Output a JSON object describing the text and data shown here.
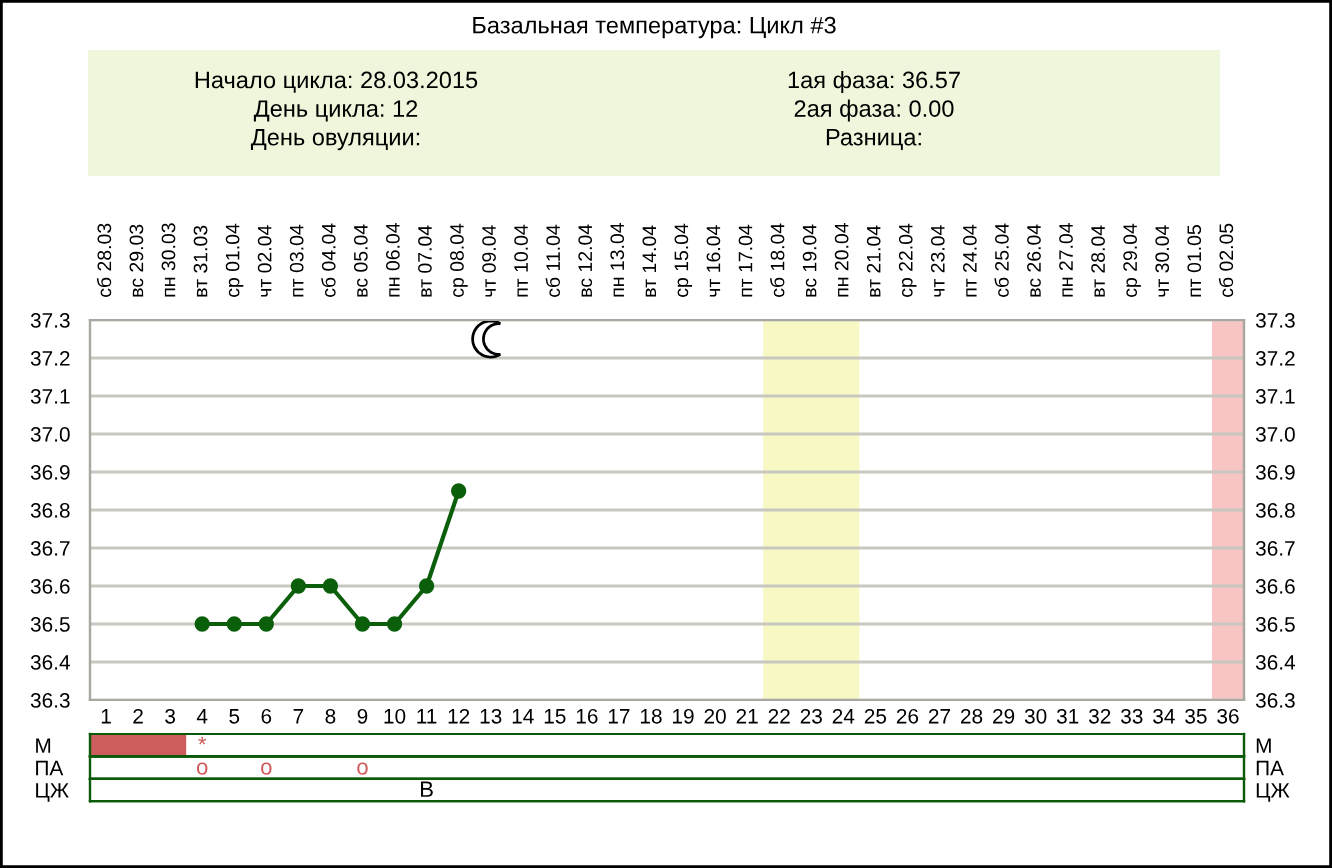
{
  "chart_data": [
    {
      "type": "other",
      "title": "Базальная температура: Цикл #3",
      "color": "#eef7dc",
      "annotations": [
        "Начало цикла: 28.03.2015",
        "1ая фаза: 36.57",
        "День цикла: 12",
        "2ая фаза: 0.00",
        "День овуляции:",
        "Разница:"
      ]
    },
    {
      "type": "line",
      "categories": [
        "1",
        "2",
        "3",
        "4",
        "5",
        "6",
        "7",
        "8",
        "9",
        "10",
        "11",
        "12",
        "13",
        "14",
        "15",
        "16",
        "17",
        "18",
        "19",
        "20",
        "21",
        "22",
        "23",
        "24",
        "25",
        "26",
        "27",
        "28",
        "29",
        "30",
        "31",
        "32",
        "33",
        "34",
        "35",
        "36"
      ],
      "values": [
        null,
        null,
        null,
        36.5,
        36.5,
        36.5,
        36.6,
        36.6,
        36.5,
        36.5,
        36.6,
        36.85,
        null,
        null,
        null,
        null,
        null,
        null,
        null,
        null,
        null,
        null,
        null,
        null,
        null,
        null,
        null,
        null,
        null,
        null,
        null,
        null,
        null,
        null,
        null,
        null
      ],
      "color": "#0b5f0b",
      "marker": "circle",
      "line_style": "solid",
      "ylim": [
        36.3,
        37.3
      ],
      "yticks": [
        36.3,
        36.4,
        36.5,
        36.6,
        36.7,
        36.8,
        36.9,
        {
          "value": 37,
          "label": "37.0"
        },
        37.1,
        37.2,
        37.3
      ],
      "y2lim": [
        36.3,
        37.3
      ],
      "y2ticks": [
        36.3,
        36.4,
        36.5,
        36.6,
        36.7,
        36.8,
        36.9,
        {
          "value": 37,
          "label": "37.0"
        },
        37.1,
        37.2,
        37.3
      ],
      "grid": true,
      "bands": [
        {
          "axis": "x",
          "from": "22",
          "to": "24",
          "color": "#f8f8c4"
        },
        {
          "axis": "x",
          "from": "36",
          "to": "36",
          "color": "#f8c4c4"
        }
      ],
      "annotations": [
        "сб 28.03",
        "вс 29.03",
        "пн 30.03",
        "вт 31.03",
        "ср 01.04",
        "чт 02.04",
        "пт 03.04",
        "сб 04.04",
        "вс 05.04",
        "пн 06.04",
        "вт 07.04",
        "ср 08.04",
        "чт 09.04",
        "пт 10.04",
        "сб 11.04",
        "вс 12.04",
        "пн 13.04",
        "вт 14.04",
        "ср 15.04",
        "чт 16.04",
        "пт 17.04",
        "сб 18.04",
        "вс 19.04",
        "пн 20.04",
        "вт 21.04",
        "ср 22.04",
        "чт 23.04",
        "пт 24.04",
        "сб 25.04",
        "вс 26.04",
        "пн 27.04",
        "вт 28.04",
        "ср 29.04",
        "чт 30.04",
        "пт 01.05",
        "сб 02.05"
      ]
    },
    {
      "type": "heatmap",
      "categories": [
        "1",
        "2",
        "3",
        "4",
        "5",
        "6",
        "7",
        "8",
        "9",
        "10",
        "11",
        "12",
        "13",
        "14",
        "15",
        "16",
        "17",
        "18",
        "19",
        "20",
        "21",
        "22",
        "23",
        "24",
        "25",
        "26",
        "27",
        "28",
        "29",
        "30",
        "31",
        "32",
        "33",
        "34",
        "35",
        "36"
      ],
      "y_categories": [
        "М"
      ],
      "y2_categories": [
        "М"
      ],
      "cells": [
        [
          null,
          null,
          null,
          null,
          null,
          null,
          null,
          null,
          null,
          null,
          null,
          null,
          null,
          null,
          null,
          null,
          null,
          null,
          null,
          null,
          null,
          null,
          null,
          null,
          null,
          null,
          null,
          null,
          null,
          null,
          null,
          null,
          null,
          null,
          null,
          null
        ]
      ],
      "cell_labels": [
        [
          null,
          null,
          null,
          "*",
          null,
          null,
          null,
          null,
          null,
          null,
          null,
          null,
          null,
          null,
          null,
          null,
          null,
          null,
          null,
          null,
          null,
          null,
          null,
          null,
          null,
          null,
          null,
          null,
          null,
          null,
          null,
          null,
          null,
          null,
          null,
          null
        ]
      ],
      "bands": [
        {
          "axis": "x",
          "from": "1",
          "to": "3",
          "color": "#cd5c5c"
        }
      ],
      "colors": [
        "#d05a5a"
      ],
      "grid": true,
      "tick_labels": "y"
    },
    {
      "type": "heatmap",
      "categories": [
        "1",
        "2",
        "3",
        "4",
        "5",
        "6",
        "7",
        "8",
        "9",
        "10",
        "11",
        "12",
        "13",
        "14",
        "15",
        "16",
        "17",
        "18",
        "19",
        "20",
        "21",
        "22",
        "23",
        "24",
        "25",
        "26",
        "27",
        "28",
        "29",
        "30",
        "31",
        "32",
        "33",
        "34",
        "35",
        "36"
      ],
      "y_categories": [
        "ПА"
      ],
      "y2_categories": [
        "ПА"
      ],
      "cells": [
        [
          null,
          null,
          null,
          null,
          null,
          null,
          null,
          null,
          null,
          null,
          null,
          null,
          null,
          null,
          null,
          null,
          null,
          null,
          null,
          null,
          null,
          null,
          null,
          null,
          null,
          null,
          null,
          null,
          null,
          null,
          null,
          null,
          null,
          null,
          null,
          null
        ]
      ],
      "cell_labels": [
        [
          null,
          null,
          null,
          "o",
          null,
          "o",
          null,
          null,
          "o",
          null,
          null,
          null,
          null,
          null,
          null,
          null,
          null,
          null,
          null,
          null,
          null,
          null,
          null,
          null,
          null,
          null,
          null,
          null,
          null,
          null,
          null,
          null,
          null,
          null,
          null,
          null
        ]
      ],
      "colors": [
        "#d05a5a"
      ],
      "grid": true,
      "tick_labels": "y"
    },
    {
      "type": "heatmap",
      "categories": [
        "1",
        "2",
        "3",
        "4",
        "5",
        "6",
        "7",
        "8",
        "9",
        "10",
        "11",
        "12",
        "13",
        "14",
        "15",
        "16",
        "17",
        "18",
        "19",
        "20",
        "21",
        "22",
        "23",
        "24",
        "25",
        "26",
        "27",
        "28",
        "29",
        "30",
        "31",
        "32",
        "33",
        "34",
        "35",
        "36"
      ],
      "y_categories": [
        "ЦЖ"
      ],
      "y2_categories": [
        "ЦЖ"
      ],
      "cells": [
        [
          null,
          null,
          null,
          null,
          null,
          null,
          null,
          null,
          null,
          null,
          null,
          null,
          null,
          null,
          null,
          null,
          null,
          null,
          null,
          null,
          null,
          null,
          null,
          null,
          null,
          null,
          null,
          null,
          null,
          null,
          null,
          null,
          null,
          null,
          null,
          null
        ]
      ],
      "cell_labels": [
        [
          null,
          null,
          null,
          null,
          null,
          null,
          null,
          null,
          null,
          null,
          "В",
          null,
          null,
          null,
          null,
          null,
          null,
          null,
          null,
          null,
          null,
          null,
          null,
          null,
          null,
          null,
          null,
          null,
          null,
          null,
          null,
          null,
          null,
          null,
          null,
          null
        ]
      ],
      "colors": [
        "#000000"
      ],
      "grid": true,
      "tick_labels": "y"
    }
  ]
}
